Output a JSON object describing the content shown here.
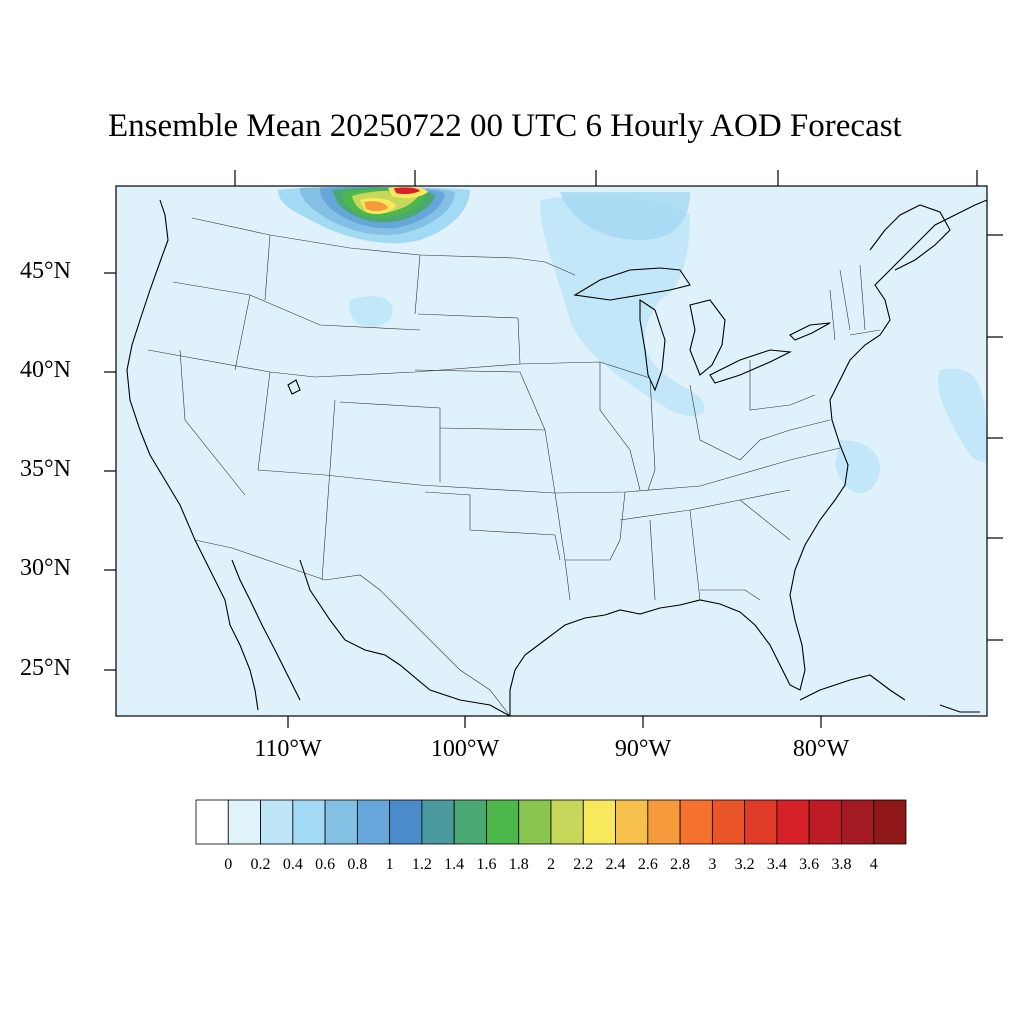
{
  "title": "Ensemble Mean 20250722 00 UTC 6 Hourly AOD Forecast",
  "lat_labels": [
    "45°N",
    "40°N",
    "35°N",
    "30°N",
    "25°N"
  ],
  "lon_labels": [
    "110°W",
    "100°W",
    "90°W",
    "80°W"
  ],
  "colorbar": {
    "labels": [
      "0",
      "0.2",
      "0.4",
      "0.6",
      "0.8",
      "1",
      "1.2",
      "1.4",
      "1.6",
      "1.8",
      "2",
      "2.2",
      "2.4",
      "2.6",
      "2.8",
      "3",
      "3.2",
      "3.4",
      "3.6",
      "3.8",
      "4"
    ],
    "colors": [
      "#ffffff",
      "#e0f3fb",
      "#bfe6f7",
      "#a2d9f3",
      "#84bfe4",
      "#66a6da",
      "#4a8bc9",
      "#4a9a9e",
      "#4aa873",
      "#4cb74a",
      "#88c64f",
      "#c6d75a",
      "#f7e85c",
      "#f7c04d",
      "#f69a3e",
      "#f4712e",
      "#ea5528",
      "#e03b27",
      "#d52127",
      "#bd1c26",
      "#a41a22",
      "#8e1717"
    ]
  },
  "map": {
    "background_color": "#dff1fa",
    "plume_colors": [
      "#a2d9f3",
      "#84bfe4",
      "#66a6da",
      "#4aa873",
      "#4cb74a",
      "#c6d75a",
      "#f7e85c",
      "#f69a3e",
      "#ea5528",
      "#d52127"
    ]
  }
}
